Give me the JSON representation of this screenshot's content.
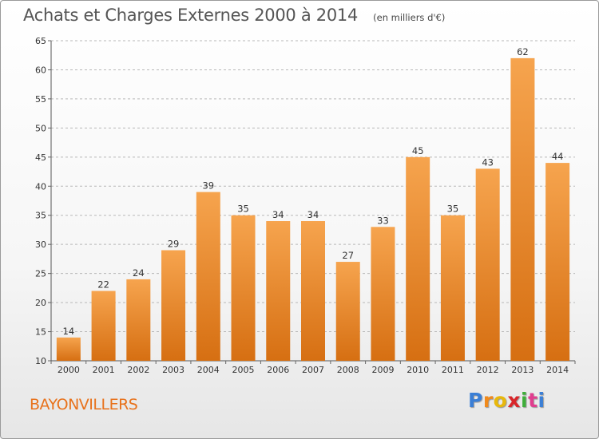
{
  "header": {
    "title": "Achats et Charges Externes 2000 à 2014",
    "unit": "(en milliers d'€)"
  },
  "footer": {
    "place": "BAYONVILLERS",
    "brand": "Proxiti",
    "brand_colors": [
      "#3b7fd6",
      "#f08a1c",
      "#e8b80c",
      "#d8262a",
      "#3fae3a",
      "#e03e8f",
      "#3b7fd6"
    ]
  },
  "colors": {
    "bar_top": "#f6a44e",
    "bar_bottom": "#d66f12",
    "place_text": "#e8721c",
    "grid": "#b8b8b8"
  },
  "chart_data": {
    "type": "bar",
    "title": "Achats et Charges Externes 2000 à 2014",
    "subtitle": "(en milliers d'€)",
    "categories": [
      "2000",
      "2001",
      "2002",
      "2003",
      "2004",
      "2005",
      "2006",
      "2007",
      "2008",
      "2009",
      "2010",
      "2011",
      "2012",
      "2013",
      "2014"
    ],
    "values": [
      14,
      22,
      24,
      29,
      39,
      35,
      34,
      34,
      27,
      33,
      45,
      35,
      43,
      62,
      44
    ],
    "ylim": [
      10,
      65
    ],
    "yticks": [
      10,
      15,
      20,
      25,
      30,
      35,
      40,
      45,
      50,
      55,
      60,
      65
    ],
    "grid": "horizontal dashed",
    "legend": "none",
    "data_labels": true
  }
}
